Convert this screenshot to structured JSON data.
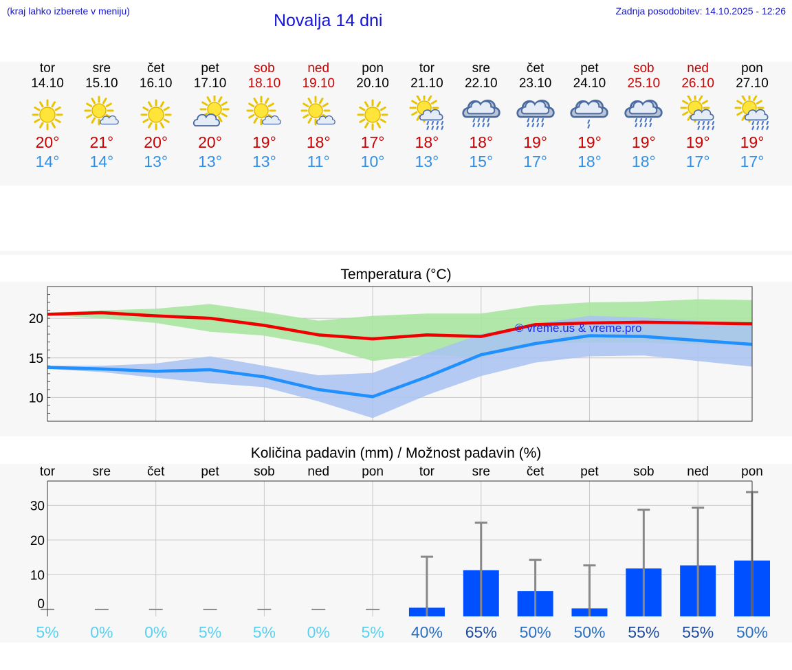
{
  "header": {
    "note": "(kraj lahko izberete v meniju)",
    "title": "Novalja 14 dni",
    "updated": "Zadnja posodobitev: 14.10.2025 - 12:26"
  },
  "days": [
    {
      "name": "tor",
      "date": "14.10",
      "weekend": false,
      "icon": "sun-icon",
      "max": "20°",
      "min": "14°"
    },
    {
      "name": "sre",
      "date": "15.10",
      "weekend": false,
      "icon": "sun-cloud-icon",
      "max": "21°",
      "min": "14°"
    },
    {
      "name": "čet",
      "date": "16.10",
      "weekend": false,
      "icon": "sun-icon",
      "max": "20°",
      "min": "13°"
    },
    {
      "name": "pet",
      "date": "17.10",
      "weekend": false,
      "icon": "partly-cloudy-icon",
      "max": "20°",
      "min": "13°"
    },
    {
      "name": "sob",
      "date": "18.10",
      "weekend": true,
      "icon": "sun-cloud-icon",
      "max": "19°",
      "min": "13°"
    },
    {
      "name": "ned",
      "date": "19.10",
      "weekend": true,
      "icon": "sun-cloud-icon",
      "max": "18°",
      "min": "11°"
    },
    {
      "name": "pon",
      "date": "20.10",
      "weekend": false,
      "icon": "sun-icon",
      "max": "17°",
      "min": "10°"
    },
    {
      "name": "tor",
      "date": "21.10",
      "weekend": false,
      "icon": "sun-rain-icon",
      "max": "18°",
      "min": "13°"
    },
    {
      "name": "sre",
      "date": "22.10",
      "weekend": false,
      "icon": "rain-cloud-icon",
      "max": "18°",
      "min": "15°"
    },
    {
      "name": "čet",
      "date": "23.10",
      "weekend": false,
      "icon": "rain-cloud-icon",
      "max": "19°",
      "min": "17°"
    },
    {
      "name": "pet",
      "date": "24.10",
      "weekend": false,
      "icon": "rain-cloud-light-icon",
      "max": "19°",
      "min": "18°"
    },
    {
      "name": "sob",
      "date": "25.10",
      "weekend": true,
      "icon": "rain-cloud-icon",
      "max": "19°",
      "min": "18°"
    },
    {
      "name": "ned",
      "date": "26.10",
      "weekend": true,
      "icon": "sun-rain-icon",
      "max": "19°",
      "min": "17°"
    },
    {
      "name": "pon",
      "date": "27.10",
      "weekend": false,
      "icon": "sun-rain-icon",
      "max": "19°",
      "min": "17°"
    }
  ],
  "colors": {
    "max_line": "#ee0000",
    "min_line": "#2090ff",
    "max_band": "#a8e6a0",
    "min_band": "#a9c2f2",
    "bar": "#0050ff",
    "whisker": "#888888"
  },
  "chart_data": [
    {
      "type": "line",
      "title": "Temperatura (°C)",
      "ylim": [
        7,
        24
      ],
      "yticks": [
        "10",
        "15",
        "20"
      ],
      "grid": true,
      "watermark": "© vreme.us & vreme.pro",
      "x": [
        "14.10",
        "15.10",
        "16.10",
        "17.10",
        "18.10",
        "19.10",
        "20.10",
        "21.10",
        "22.10",
        "23.10",
        "24.10",
        "25.10",
        "26.10",
        "27.10"
      ],
      "series": [
        {
          "role": "max",
          "values": [
            20.5,
            20.7,
            20.3,
            20.0,
            19.1,
            17.9,
            17.4,
            17.9,
            17.7,
            19.2,
            19.4,
            19.5,
            19.4,
            19.3
          ]
        },
        {
          "role": "min",
          "values": [
            13.8,
            13.6,
            13.3,
            13.5,
            12.6,
            11.0,
            10.1,
            12.6,
            15.4,
            16.8,
            17.8,
            17.7,
            17.2,
            16.7
          ]
        }
      ],
      "bands": [
        {
          "role": "max",
          "low": [
            20.4,
            20.0,
            19.4,
            18.3,
            17.8,
            16.6,
            14.6,
            15.4,
            15.0,
            16.8,
            16.9,
            16.9,
            16.7,
            16.6
          ],
          "high": [
            20.7,
            21.0,
            21.2,
            21.8,
            20.8,
            19.7,
            20.3,
            20.6,
            20.6,
            21.6,
            22.0,
            22.1,
            22.4,
            22.3
          ]
        },
        {
          "role": "min",
          "low": [
            13.6,
            13.2,
            12.5,
            11.8,
            11.3,
            9.5,
            7.4,
            10.3,
            12.7,
            14.4,
            15.2,
            15.3,
            14.6,
            13.9
          ]
        },
        {
          "role": "min_high",
          "values": [
            14.0,
            14.0,
            14.3,
            15.2,
            14.0,
            12.8,
            13.1,
            15.6,
            18.0,
            19.3,
            20.3,
            20.1,
            19.7,
            19.4
          ]
        }
      ]
    },
    {
      "type": "bar",
      "title": "Količina padavin (mm) / Možnost padavin (%)",
      "ylim": [
        -2,
        37
      ],
      "yticks": [
        "0",
        "10",
        "20",
        "30"
      ],
      "grid": true,
      "categories": [
        "tor",
        "sre",
        "čet",
        "pet",
        "sob",
        "ned",
        "pon",
        "tor",
        "sre",
        "čet",
        "pet",
        "sob",
        "ned",
        "pon"
      ],
      "amount": [
        0,
        0,
        0,
        0,
        0,
        0,
        0,
        0.5,
        11.3,
        5.3,
        0.3,
        11.8,
        12.7,
        14.1
      ],
      "amount_max": [
        0,
        0,
        0,
        0,
        0,
        0,
        0,
        15.2,
        25.0,
        14.3,
        12.7,
        28.7,
        29.3,
        33.8
      ],
      "chance": [
        "5%",
        "0%",
        "0%",
        "5%",
        "5%",
        "0%",
        "5%",
        "40%",
        "65%",
        "50%",
        "50%",
        "55%",
        "55%",
        "50%"
      ]
    }
  ]
}
